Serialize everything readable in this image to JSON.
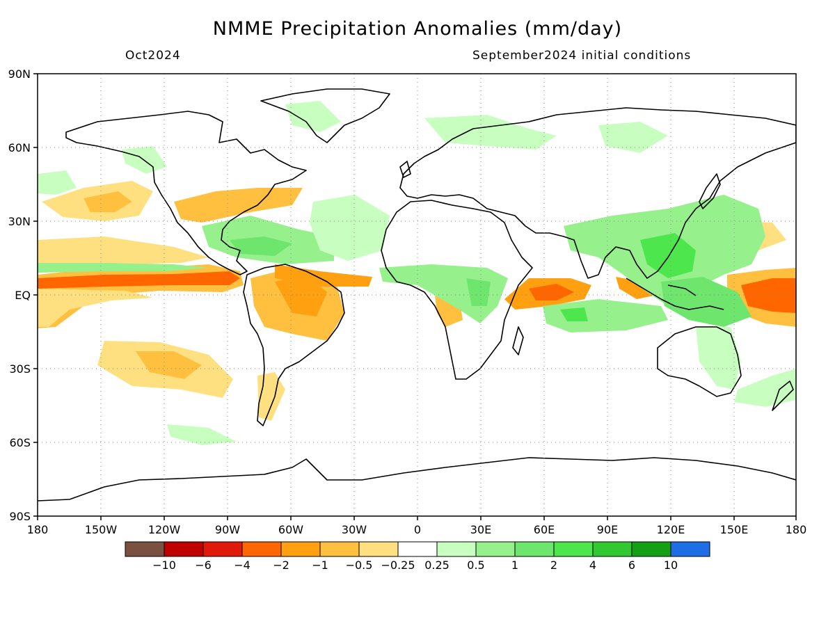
{
  "title": "NMME Precipitation Anomalies (mm/day)",
  "forecast_month": "Oct2024",
  "initial_conditions": "September2024 initial conditions",
  "map": {
    "projection": "equirectangular",
    "lon_range": [
      -180,
      180
    ],
    "lat_range": [
      -90,
      90
    ],
    "lat_ticks": [
      "90N",
      "60N",
      "30N",
      "EQ",
      "30S",
      "60S",
      "90S"
    ],
    "lon_ticks": [
      "180",
      "150W",
      "120W",
      "90W",
      "60W",
      "30W",
      "0",
      "30E",
      "60E",
      "90E",
      "120E",
      "150E",
      "180"
    ],
    "grid": "dotted"
  },
  "colorbar": {
    "colors": [
      "#7a5040",
      "#c00000",
      "#e01a0a",
      "#ff6600",
      "#ffa010",
      "#ffc040",
      "#ffe080",
      "#ffffff",
      "#c8ffc0",
      "#96f08c",
      "#6ee66e",
      "#4de64d",
      "#32c832",
      "#14a014",
      "#1e6ee6"
    ],
    "labels": [
      "−10",
      "−6",
      "−4",
      "−2",
      "−1",
      "−0.5",
      "−0.25",
      "0.25",
      "0.5",
      "1",
      "2",
      "4",
      "6",
      "10"
    ]
  },
  "anomaly_regions": [
    {
      "region": "Central Pacific ITCZ band 5N",
      "level": "-2"
    },
    {
      "region": "Equatorial east Pacific",
      "level": "-1"
    },
    {
      "region": "Subtropical NE Pacific",
      "level": "-0.5"
    },
    {
      "region": "South Pacific subtropics",
      "level": "-0.5"
    },
    {
      "region": "Northern South America / Amazon",
      "level": "-1"
    },
    {
      "region": "Tropical Atlantic 5N",
      "level": "-2"
    },
    {
      "region": "Caribbean / Gulf of Mexico",
      "level": "1"
    },
    {
      "region": "Central tropical Atlantic",
      "level": "1"
    },
    {
      "region": "Sahel / central Africa",
      "level": "1"
    },
    {
      "region": "Western Indian Ocean",
      "level": "-1"
    },
    {
      "region": "Central Indian Ocean 10S",
      "level": "2"
    },
    {
      "region": "Bay of Bengal / SE Asia",
      "level": "2"
    },
    {
      "region": "Maritime Continent / Philippines",
      "level": "2"
    },
    {
      "region": "Western Pacific warm pool",
      "level": "1"
    },
    {
      "region": "Date-line equatorial Pacific",
      "level": "-2"
    },
    {
      "region": "Eastern Australia",
      "level": "0.5"
    },
    {
      "region": "Southern Ocean south of Australia",
      "level": "0.5"
    }
  ]
}
